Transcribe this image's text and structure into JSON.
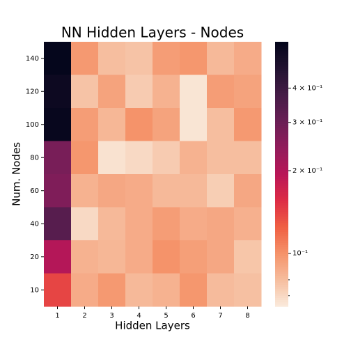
{
  "chart_data": {
    "type": "heatmap",
    "title": "NN Hidden Layers - Nodes",
    "x_label": "Hidden Layers",
    "y_label": "Num. Nodes",
    "x_categories": [
      "1",
      "2",
      "3",
      "4",
      "5",
      "6",
      "7",
      "8"
    ],
    "y_categories": [
      "140",
      "120",
      "100",
      "80",
      "60",
      "40",
      "20",
      "10"
    ],
    "values": [
      [
        0.58,
        0.097,
        0.08,
        0.078,
        0.095,
        0.098,
        0.082,
        0.088
      ],
      [
        0.55,
        0.078,
        0.092,
        0.075,
        0.085,
        0.066,
        0.095,
        0.092
      ],
      [
        0.57,
        0.095,
        0.083,
        0.1,
        0.092,
        0.066,
        0.08,
        0.097
      ],
      [
        0.28,
        0.098,
        0.067,
        0.07,
        0.075,
        0.085,
        0.08,
        0.08
      ],
      [
        0.27,
        0.085,
        0.09,
        0.088,
        0.082,
        0.082,
        0.074,
        0.09
      ],
      [
        0.34,
        0.07,
        0.082,
        0.088,
        0.095,
        0.088,
        0.09,
        0.086
      ],
      [
        0.2,
        0.085,
        0.083,
        0.088,
        0.1,
        0.094,
        0.09,
        0.077
      ],
      [
        0.14,
        0.088,
        0.097,
        0.082,
        0.085,
        0.098,
        0.081,
        0.079
      ]
    ],
    "colormap": "rocket_r",
    "color_scale": "log",
    "clim": [
      0.064,
      0.59
    ],
    "cticks": [
      {
        "value": 0.1,
        "label": "10⁻¹"
      },
      {
        "value": 0.2,
        "label": "2 × 10⁻¹"
      },
      {
        "value": 0.3,
        "label": "3 × 10⁻¹"
      },
      {
        "value": 0.4,
        "label": "4 × 10⁻¹"
      }
    ],
    "cminor_ticks": [
      0.07,
      0.08
    ]
  }
}
